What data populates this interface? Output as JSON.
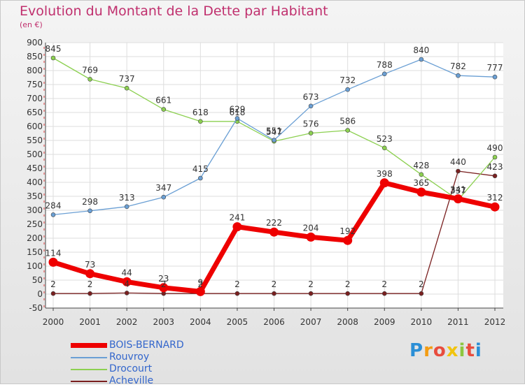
{
  "chart_data": {
    "type": "line",
    "title": "Evolution du Montant de la Dette par Habitant",
    "subtitle": "(en €)",
    "xlabel": "",
    "ylabel": "",
    "categories": [
      "2000",
      "2001",
      "2002",
      "2003",
      "2004",
      "2005",
      "2006",
      "2007",
      "2008",
      "2009",
      "2010",
      "2011",
      "2012"
    ],
    "ylim": [
      -50,
      900
    ],
    "yticks": [
      -50,
      0,
      50,
      100,
      150,
      200,
      250,
      300,
      350,
      400,
      450,
      500,
      550,
      600,
      650,
      700,
      750,
      800,
      850,
      900
    ],
    "grid": true,
    "legend_position": "bottom-left",
    "series": [
      {
        "name": "BOIS-BERNARD",
        "color": "#ee0000",
        "values": [
          114,
          73,
          44,
          23,
          9,
          241,
          222,
          204,
          192,
          398,
          365,
          341,
          312
        ],
        "labels": [
          "114",
          "73",
          "44",
          "23",
          "9",
          "241",
          "222",
          "204",
          "192",
          "398",
          "365",
          "341",
          "312"
        ]
      },
      {
        "name": "Rouvroy",
        "color": "#6a9fd4",
        "values": [
          284,
          298,
          313,
          347,
          415,
          629,
          551,
          673,
          732,
          788,
          840,
          782,
          777
        ],
        "labels": [
          "284",
          "298",
          "313",
          "347",
          "415",
          "629",
          "551",
          "673",
          "732",
          "788",
          "840",
          "782",
          "777"
        ]
      },
      {
        "name": "Drocourt",
        "color": "#8cd050",
        "values": [
          845,
          769,
          737,
          661,
          618,
          618,
          547,
          576,
          586,
          523,
          428,
          337,
          490
        ],
        "labels": [
          "845",
          "769",
          "737",
          "661",
          "618",
          "618",
          "547",
          "576",
          "586",
          "523",
          "428",
          "337",
          "490"
        ]
      },
      {
        "name": "Acheville",
        "color": "#7a2020",
        "values": [
          2,
          2,
          4,
          2,
          2,
          2,
          2,
          2,
          2,
          2,
          2,
          440,
          423
        ],
        "labels": [
          "2",
          "2",
          "4",
          "2",
          "2",
          "2",
          "2",
          "2",
          "2",
          "2",
          "2",
          "440",
          "423"
        ]
      }
    ]
  },
  "logo": {
    "letters": [
      "P",
      "r",
      "o",
      "x",
      "i",
      "t",
      "i"
    ],
    "colors": [
      "#2b8fd6",
      "#f39c12",
      "#e84c3d",
      "#f1c40f",
      "#8dc63f",
      "#e84c3d",
      "#2b8fd6"
    ]
  }
}
